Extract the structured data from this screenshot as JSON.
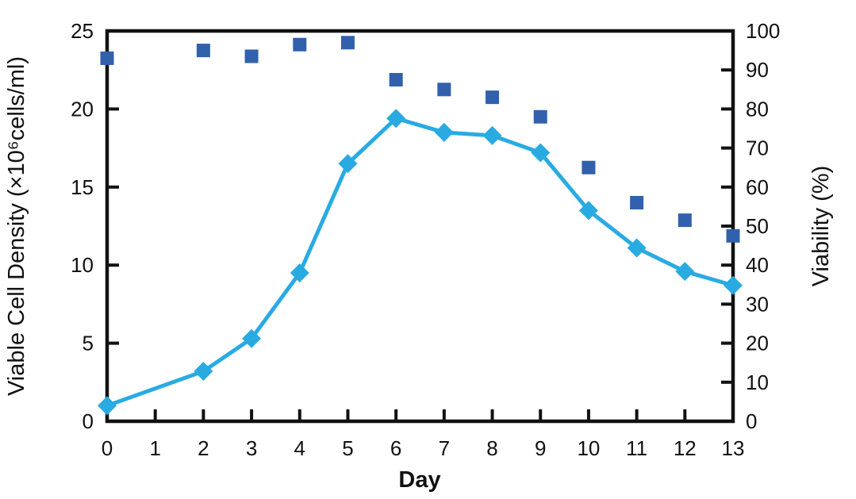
{
  "chart_data": {
    "type": "line",
    "title": "",
    "xlabel": "Day",
    "ylabel_left": "Viable Cell Density (×10⁶cells/ml)",
    "ylabel_right": "Viability (%)",
    "xlim": [
      0,
      13
    ],
    "x_ticks": [
      0,
      1,
      2,
      3,
      4,
      5,
      6,
      7,
      8,
      9,
      10,
      11,
      12,
      13
    ],
    "ylim_left": [
      0,
      25
    ],
    "y_ticks_left": [
      0,
      5,
      10,
      15,
      20,
      25
    ],
    "ylim_right": [
      0,
      100
    ],
    "y_ticks_right": [
      0,
      10,
      20,
      30,
      40,
      50,
      60,
      70,
      80,
      90,
      100
    ],
    "grid": false,
    "legend_position": "none",
    "axis_color": "#111111",
    "series": [
      {
        "name": "Viable Cell Density",
        "axis": "left",
        "draw": "line+marker",
        "marker": "diamond",
        "color": "#29ABE2",
        "x": [
          0,
          2,
          3,
          4,
          5,
          6,
          7,
          8,
          9,
          10,
          11,
          12,
          13
        ],
        "y": [
          1.0,
          3.2,
          5.3,
          9.5,
          16.5,
          19.4,
          18.5,
          18.3,
          17.2,
          13.5,
          11.1,
          9.6,
          8.7
        ]
      },
      {
        "name": "Viability",
        "axis": "right",
        "draw": "marker",
        "marker": "square",
        "color": "#3161AC",
        "x": [
          0,
          2,
          3,
          4,
          5,
          6,
          7,
          8,
          9,
          10,
          11,
          12,
          13
        ],
        "y": [
          93,
          95,
          93.5,
          96.5,
          97,
          87.5,
          85,
          83,
          78,
          65,
          56,
          51.5,
          47.5
        ]
      }
    ]
  }
}
